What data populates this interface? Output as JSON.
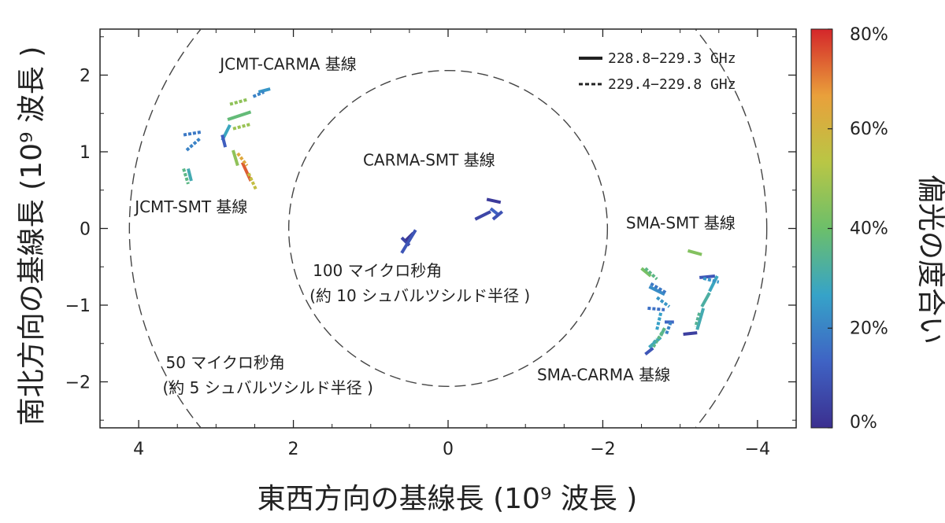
{
  "chart_data": {
    "type": "scatter",
    "title": "",
    "xlabel": "東西方向の基線長 (10⁹ 波長 )",
    "ylabel": "南北方向の基線長 (10⁹ 波長 )",
    "xlim": [
      4.5,
      -4.5
    ],
    "ylim": [
      -2.6,
      2.6
    ],
    "xticks": [
      4,
      2,
      0,
      -2,
      -4
    ],
    "xtick_labels": [
      "4",
      "2",
      "0",
      "−2",
      "−4"
    ],
    "yticks": [
      2,
      1,
      0,
      -1,
      -2
    ],
    "ytick_labels": [
      "2",
      "1",
      "0",
      "−1",
      "−2"
    ],
    "colorbar": {
      "label": "偏光の度合い",
      "range": [
        0,
        80
      ],
      "ticks": [
        0,
        20,
        40,
        60,
        80
      ],
      "tick_labels": [
        "0%",
        "20%",
        "40%",
        "60%",
        "80%"
      ],
      "colormap": [
        "#3b2f8f",
        "#3f63c4",
        "#36a3c8",
        "#6cbf6a",
        "#b9c645",
        "#e9a03b",
        "#d4262a"
      ]
    },
    "legend": {
      "position": "top-right",
      "entries": [
        {
          "label": "228.8−229.3 GHz",
          "style": "solid"
        },
        {
          "label": "229.4−229.8 GHz",
          "style": "dashed"
        }
      ]
    },
    "circles": [
      {
        "radius": 2.06,
        "label_lines": [
          "100 マイクロ秒角",
          "(約 10 シュバルツシルド半径 )"
        ]
      },
      {
        "radius": 4.12,
        "label_lines": [
          "50 マイクロ秒角",
          "(約 5 シュバルツシルド半径 )"
        ]
      }
    ],
    "baseline_labels": [
      {
        "text": "JCMT-CARMA 基線",
        "x": 2.95,
        "y": 2.07
      },
      {
        "text": "JCMT-SMT 基線",
        "x": 4.05,
        "y": 0.21
      },
      {
        "text": "CARMA-SMT 基線",
        "x": 1.1,
        "y": 0.82
      },
      {
        "text": "SMA-SMT 基線",
        "x": -2.3,
        "y": 0.0
      },
      {
        "text": "SMA-CARMA 基線",
        "x": -1.15,
        "y": -1.98
      }
    ],
    "series": [
      {
        "name": "228.8−229.3 GHz",
        "style": "solid",
        "segments": [
          {
            "x0": 2.45,
            "y0": 1.78,
            "x1": 2.3,
            "y1": 1.82,
            "pol": 24
          },
          {
            "x0": 2.85,
            "y0": 1.42,
            "x1": 2.55,
            "y1": 1.52,
            "pol": 38
          },
          {
            "x0": 2.92,
            "y0": 1.15,
            "x1": 2.82,
            "y1": 1.35,
            "pol": 28
          },
          {
            "x0": 2.78,
            "y0": 1.02,
            "x1": 2.72,
            "y1": 0.82,
            "pol": 46
          },
          {
            "x0": 2.66,
            "y0": 0.86,
            "x1": 2.55,
            "y1": 0.62,
            "pol": 74
          },
          {
            "x0": 3.36,
            "y0": 0.78,
            "x1": 3.32,
            "y1": 0.62,
            "pol": 30
          },
          {
            "x0": 2.92,
            "y0": 1.22,
            "x1": 2.88,
            "y1": 1.06,
            "pol": 12
          },
          {
            "x0": 0.5,
            "y0": -0.22,
            "x1": 0.6,
            "y1": -0.12,
            "pol": 6
          },
          {
            "x0": 0.55,
            "y0": -0.16,
            "x1": 0.45,
            "y1": -0.06,
            "pol": 2
          },
          {
            "x0": 0.42,
            "y0": -0.02,
            "x1": 0.6,
            "y1": -0.32,
            "pol": 10
          },
          {
            "x0": -0.35,
            "y0": 0.12,
            "x1": -0.55,
            "y1": 0.22,
            "pol": 6
          },
          {
            "x0": -0.5,
            "y0": 0.38,
            "x1": -0.68,
            "y1": 0.34,
            "pol": 3
          },
          {
            "x0": -0.55,
            "y0": 0.26,
            "x1": -0.65,
            "y1": 0.18,
            "pol": 13
          },
          {
            "x0": -0.58,
            "y0": 0.12,
            "x1": -0.7,
            "y1": 0.22,
            "pol": 9
          },
          {
            "x0": -3.1,
            "y0": -0.29,
            "x1": -3.28,
            "y1": -0.34,
            "pol": 44
          },
          {
            "x0": -3.25,
            "y0": -0.64,
            "x1": -3.45,
            "y1": -0.62,
            "pol": 10
          },
          {
            "x0": -3.48,
            "y0": -0.62,
            "x1": -3.38,
            "y1": -0.82,
            "pol": 28
          },
          {
            "x0": -3.38,
            "y0": -0.84,
            "x1": -3.28,
            "y1": -1.02,
            "pol": 32
          },
          {
            "x0": -3.3,
            "y0": -1.04,
            "x1": -3.22,
            "y1": -1.32,
            "pol": 30
          },
          {
            "x0": -3.22,
            "y0": -1.36,
            "x1": -3.04,
            "y1": -1.38,
            "pol": 4
          },
          {
            "x0": -2.8,
            "y0": -1.22,
            "x1": -2.92,
            "y1": -1.22,
            "pol": 14
          },
          {
            "x0": -2.55,
            "y0": -1.64,
            "x1": -2.65,
            "y1": -1.56,
            "pol": 10
          },
          {
            "x0": -2.6,
            "y0": -1.55,
            "x1": -2.75,
            "y1": -1.42,
            "pol": 28
          },
          {
            "x0": -2.75,
            "y0": -1.4,
            "x1": -2.8,
            "y1": -1.3,
            "pol": 34
          },
          {
            "x0": -2.6,
            "y0": -0.76,
            "x1": -2.8,
            "y1": -0.86,
            "pol": 22
          },
          {
            "x0": -2.5,
            "y0": -0.52,
            "x1": -2.62,
            "y1": -0.62,
            "pol": 42
          }
        ]
      },
      {
        "name": "229.4−229.8 GHz",
        "style": "dashed",
        "segments": [
          {
            "x0": 2.52,
            "y0": 1.72,
            "x1": 2.38,
            "y1": 1.78,
            "pol": 20
          },
          {
            "x0": 2.82,
            "y0": 1.62,
            "x1": 2.6,
            "y1": 1.68,
            "pol": 46
          },
          {
            "x0": 2.78,
            "y0": 1.3,
            "x1": 2.55,
            "y1": 1.36,
            "pol": 48
          },
          {
            "x0": 3.42,
            "y0": 1.22,
            "x1": 3.18,
            "y1": 1.26,
            "pol": 18
          },
          {
            "x0": 3.38,
            "y0": 1.02,
            "x1": 3.2,
            "y1": 1.18,
            "pol": 20
          },
          {
            "x0": 2.72,
            "y0": 0.98,
            "x1": 2.6,
            "y1": 0.82,
            "pol": 64
          },
          {
            "x0": 2.58,
            "y0": 0.72,
            "x1": 2.48,
            "y1": 0.5,
            "pol": 56
          },
          {
            "x0": 3.42,
            "y0": 0.78,
            "x1": 3.36,
            "y1": 0.58,
            "pol": 36
          },
          {
            "x0": -2.55,
            "y0": -0.52,
            "x1": -2.7,
            "y1": -0.66,
            "pol": 36
          },
          {
            "x0": -2.62,
            "y0": -0.72,
            "x1": -2.82,
            "y1": -0.84,
            "pol": 18
          },
          {
            "x0": -2.7,
            "y0": -0.9,
            "x1": -2.86,
            "y1": -1.02,
            "pol": 24
          },
          {
            "x0": -2.58,
            "y0": -1.04,
            "x1": -2.8,
            "y1": -1.06,
            "pol": 16
          },
          {
            "x0": -2.75,
            "y0": -1.1,
            "x1": -2.7,
            "y1": -1.32,
            "pol": 26
          },
          {
            "x0": -2.8,
            "y0": -1.3,
            "x1": -2.65,
            "y1": -1.55,
            "pol": 36
          },
          {
            "x0": -2.88,
            "y0": -1.22,
            "x1": -2.82,
            "y1": -1.38,
            "pol": 20
          },
          {
            "x0": -3.3,
            "y0": -0.65,
            "x1": -3.5,
            "y1": -0.7,
            "pol": 24
          },
          {
            "x0": -3.25,
            "y0": -1.1,
            "x1": -3.2,
            "y1": -1.28,
            "pol": 34
          },
          {
            "x0": -2.62,
            "y0": -1.54,
            "x1": -2.7,
            "y1": -1.44,
            "pol": 30
          }
        ]
      }
    ]
  }
}
